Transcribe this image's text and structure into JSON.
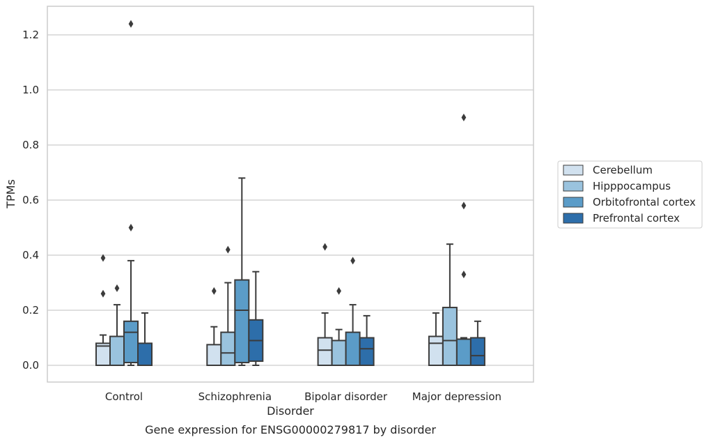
{
  "chart_data": {
    "type": "box",
    "caption": "Gene expression for ENSG00000279817 by disorder",
    "xlabel": "Disorder",
    "ylabel": "TPMs",
    "ylim": [
      -0.06,
      1.3
    ],
    "yticks": [
      "0.0",
      "0.2",
      "0.4",
      "0.6",
      "0.8",
      "1.0",
      "1.2"
    ],
    "grid": "horizontal",
    "legend_position": "right",
    "categories": [
      "Control",
      "Schizophrenia",
      "Bipolar disorder",
      "Major depression"
    ],
    "series": [
      {
        "name": "Cerebellum",
        "color": "#d1e1ef",
        "boxes": [
          {
            "whislo": 0,
            "q1": 0,
            "med": 0.07,
            "q3": 0.08,
            "whishi": 0.11,
            "fliers": [
              0.26,
              0.39
            ]
          },
          {
            "whislo": 0,
            "q1": 0,
            "med": 0.0,
            "q3": 0.075,
            "whishi": 0.14,
            "fliers": [
              0.27
            ]
          },
          {
            "whislo": 0,
            "q1": 0,
            "med": 0.055,
            "q3": 0.1,
            "whishi": 0.19,
            "fliers": [
              0.43
            ]
          },
          {
            "whislo": 0,
            "q1": 0,
            "med": 0.08,
            "q3": 0.105,
            "whishi": 0.19,
            "fliers": []
          }
        ]
      },
      {
        "name": "Hipppocampus",
        "color": "#9ac3de",
        "boxes": [
          {
            "whislo": 0,
            "q1": 0,
            "med": 0.0,
            "q3": 0.105,
            "whishi": 0.22,
            "fliers": [
              0.28
            ]
          },
          {
            "whislo": 0,
            "q1": 0,
            "med": 0.045,
            "q3": 0.12,
            "whishi": 0.3,
            "fliers": [
              0.42
            ]
          },
          {
            "whislo": 0,
            "q1": 0,
            "med": 0.0,
            "q3": 0.09,
            "whishi": 0.13,
            "fliers": [
              0.27
            ]
          },
          {
            "whislo": 0,
            "q1": 0,
            "med": 0.09,
            "q3": 0.21,
            "whishi": 0.44,
            "fliers": []
          }
        ]
      },
      {
        "name": "Orbitofrontal cortex",
        "color": "#5b9cc8",
        "boxes": [
          {
            "whislo": 0,
            "q1": 0.01,
            "med": 0.12,
            "q3": 0.16,
            "whishi": 0.38,
            "fliers": [
              0.5,
              1.24
            ]
          },
          {
            "whislo": 0,
            "q1": 0.01,
            "med": 0.2,
            "q3": 0.31,
            "whishi": 0.68,
            "fliers": []
          },
          {
            "whislo": 0,
            "q1": 0,
            "med": 0.0,
            "q3": 0.12,
            "whishi": 0.22,
            "fliers": [
              0.38
            ]
          },
          {
            "whislo": 0,
            "q1": 0,
            "med": 0.0,
            "q3": 0.095,
            "whishi": 0.1,
            "fliers": [
              0.33,
              0.58,
              0.9
            ]
          }
        ]
      },
      {
        "name": "Prefrontal cortex",
        "color": "#2d6eaa",
        "boxes": [
          {
            "whislo": 0,
            "q1": 0,
            "med": 0.0,
            "q3": 0.08,
            "whishi": 0.19,
            "fliers": []
          },
          {
            "whislo": 0,
            "q1": 0.015,
            "med": 0.09,
            "q3": 0.165,
            "whishi": 0.34,
            "fliers": []
          },
          {
            "whislo": 0,
            "q1": 0,
            "med": 0.06,
            "q3": 0.1,
            "whishi": 0.18,
            "fliers": []
          },
          {
            "whislo": 0,
            "q1": 0,
            "med": 0.035,
            "q3": 0.1,
            "whishi": 0.16,
            "fliers": []
          }
        ]
      }
    ]
  }
}
